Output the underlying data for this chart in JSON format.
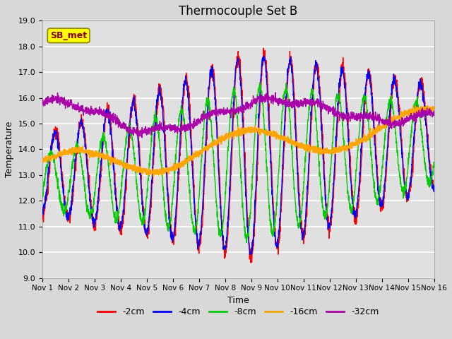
{
  "title": "Thermocouple Set B",
  "xlabel": "Time",
  "ylabel": "Temperature",
  "ylim": [
    9.0,
    19.0
  ],
  "yticks": [
    9.0,
    10.0,
    11.0,
    12.0,
    13.0,
    14.0,
    15.0,
    16.0,
    17.0,
    18.0,
    19.0
  ],
  "xtick_labels": [
    "Nov 1",
    "Nov 2",
    "Nov 3",
    "Nov 4",
    "Nov 5",
    "Nov 6",
    "Nov 7",
    "Nov 8",
    "Nov 9",
    "Nov 10",
    "Nov 11",
    "Nov 12",
    "Nov 13",
    "Nov 14",
    "Nov 15",
    "Nov 16"
  ],
  "colors": {
    "2cm": "#ff0000",
    "4cm": "#0000ff",
    "8cm": "#00cc00",
    "16cm": "#ffa500",
    "32cm": "#aa00aa"
  },
  "legend_labels": [
    "-2cm",
    "-4cm",
    "-8cm",
    "-16cm",
    "-32cm"
  ],
  "legend_colors": [
    "#ff0000",
    "#0000ff",
    "#00cc00",
    "#ffa500",
    "#aa00aa"
  ],
  "sb_met_label": "SB_met",
  "sb_met_bg": "#ffff00",
  "sb_met_text_color": "#880000",
  "sb_met_edge_color": "#888800",
  "background_color": "#d8d8d8",
  "plot_bg_color": "#e0e0e0",
  "grid_color": "#ffffff",
  "title_fontsize": 12,
  "axis_fontsize": 9,
  "tick_fontsize": 8
}
